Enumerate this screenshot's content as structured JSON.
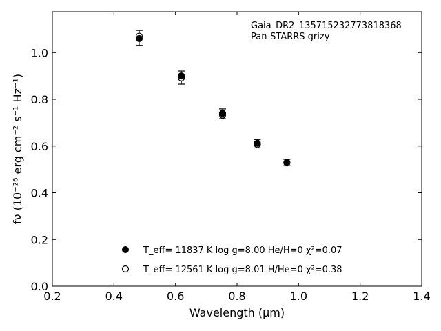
{
  "chart_data": {
    "type": "scatter",
    "title": "",
    "annotation": {
      "line1": "Gaia_DR2_135715232773818368",
      "line2": "Pan-STARRS grizy"
    },
    "xlabel": "Wavelength (μm)",
    "ylabel": "fν (10⁻²⁶ erg cm⁻² s⁻¹ Hz⁻¹)",
    "xlim": [
      0.2,
      1.4
    ],
    "ylim": [
      0.0,
      1.175
    ],
    "xticks": [
      0.2,
      0.4,
      0.6,
      0.8,
      1.0,
      1.2,
      1.4
    ],
    "xtick_labels": [
      "0.2",
      "0.4",
      "0.6",
      "0.8",
      "1.0",
      "1.2",
      "1.4"
    ],
    "yticks": [
      0.0,
      0.2,
      0.4,
      0.6,
      0.8,
      1.0
    ],
    "ytick_labels": [
      "0.0",
      "0.2",
      "0.4",
      "0.6",
      "0.8",
      "1.0"
    ],
    "grid": false,
    "legend_position": "lower-center",
    "observed": {
      "x": [
        0.482,
        0.619,
        0.753,
        0.866,
        0.962
      ],
      "y": [
        1.063,
        0.893,
        0.738,
        0.61,
        0.53
      ],
      "yerr": [
        0.032,
        0.028,
        0.021,
        0.018,
        0.013
      ]
    },
    "series": [
      {
        "name": "T_eff= 11837 K  log g=8.00  He/H=0  χ²=0.07",
        "marker": "filled-circle",
        "color": "#000000",
        "x": [
          0.482,
          0.619,
          0.753,
          0.866,
          0.962
        ],
        "y": [
          1.06,
          0.9,
          0.74,
          0.612,
          0.53
        ]
      },
      {
        "name": "T_eff= 12561 K  log g=8.01  H/He=0  χ²=0.38",
        "marker": "open-circle",
        "color": "#000000",
        "x": [
          0.482,
          0.619,
          0.753,
          0.866,
          0.962
        ],
        "y": [
          1.07,
          0.892,
          0.733,
          0.607,
          0.528
        ]
      }
    ]
  }
}
